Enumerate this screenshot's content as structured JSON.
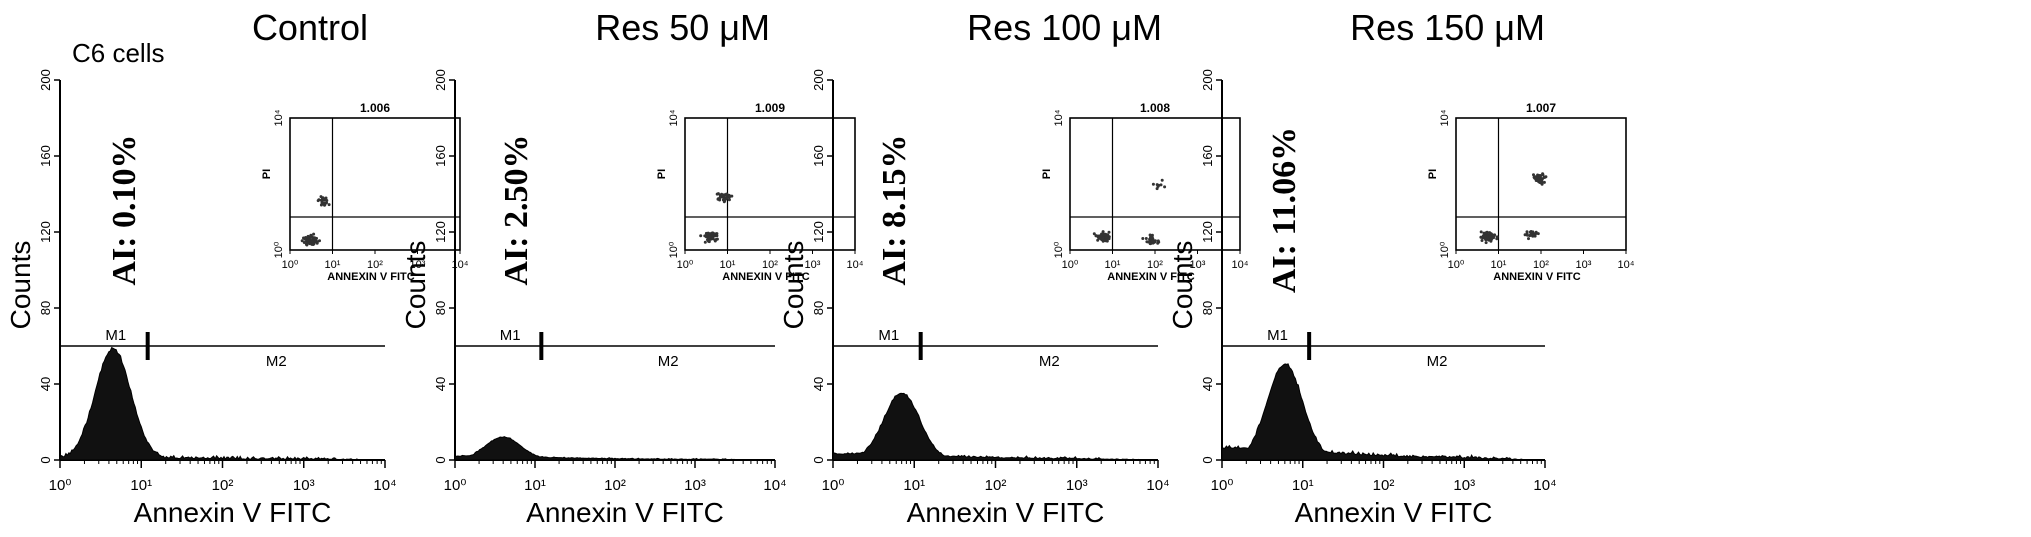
{
  "figure": {
    "corner_label": "C6 cells"
  },
  "chart_data": [
    {
      "type": "histogram",
      "title": "Control",
      "annotation": "AI: 0.10%",
      "xlabel": "Annexin V FITC",
      "ylabel": "Counts",
      "xscale": "log",
      "xlim": [
        1,
        10000
      ],
      "ylim": [
        0,
        200
      ],
      "xticks": [
        1,
        10,
        100,
        1000,
        10000
      ],
      "yticks": [
        0,
        40,
        80,
        120,
        160,
        200
      ],
      "markers": {
        "m1_label": "M1",
        "m2_label": "M2",
        "m1_range": [
          1,
          12
        ],
        "m2_range": [
          12,
          10000
        ],
        "gate_y": 60
      },
      "peak": {
        "center": 4.5,
        "height": 58,
        "baseline_tail": 1.5
      },
      "inset": {
        "type": "scatter",
        "title": "1.006",
        "xlabel": "ANNEXIN V FITC",
        "ylabel": "PI",
        "xscale": "log",
        "yscale": "log",
        "xlim": [
          1,
          10000
        ],
        "ylim": [
          1,
          10000
        ],
        "quadrant": {
          "x": 10,
          "y": 10
        },
        "clusters": [
          {
            "x": 3,
            "y": 2,
            "n": 60
          },
          {
            "x": 6,
            "y": 30,
            "n": 25
          }
        ]
      }
    },
    {
      "type": "histogram",
      "title": "Res 50 μM",
      "annotation": "AI: 2.50%",
      "xlabel": "Annexin V FITC",
      "ylabel": "Counts",
      "xscale": "log",
      "xlim": [
        1,
        10000
      ],
      "ylim": [
        0,
        200
      ],
      "xticks": [
        1,
        10,
        100,
        1000,
        10000
      ],
      "yticks": [
        0,
        40,
        80,
        120,
        160,
        200
      ],
      "markers": {
        "m1_label": "M1",
        "m2_label": "M2",
        "m1_range": [
          1,
          12
        ],
        "m2_range": [
          12,
          10000
        ],
        "gate_y": 60
      },
      "peak": {
        "center": 4,
        "height": 12,
        "baseline_tail": 2
      },
      "inset": {
        "type": "scatter",
        "title": "1.009",
        "xlabel": "ANNEXIN V FITC",
        "ylabel": "PI",
        "xscale": "log",
        "yscale": "log",
        "xlim": [
          1,
          10000
        ],
        "ylim": [
          1,
          10000
        ],
        "quadrant": {
          "x": 10,
          "y": 10
        },
        "clusters": [
          {
            "x": 4,
            "y": 2.5,
            "n": 55
          },
          {
            "x": 8,
            "y": 40,
            "n": 35
          }
        ]
      }
    },
    {
      "type": "histogram",
      "title": "Res 100 μM",
      "annotation": "AI: 8.15%",
      "xlabel": "Annexin V FITC",
      "ylabel": "Counts",
      "xscale": "log",
      "xlim": [
        1,
        10000
      ],
      "ylim": [
        0,
        200
      ],
      "xticks": [
        1,
        10,
        100,
        1000,
        10000
      ],
      "yticks": [
        0,
        40,
        80,
        120,
        160,
        200
      ],
      "markers": {
        "m1_label": "M1",
        "m2_label": "M2",
        "m1_range": [
          1,
          12
        ],
        "m2_range": [
          12,
          10000
        ],
        "gate_y": 60
      },
      "peak": {
        "center": 7,
        "height": 35,
        "baseline_tail": 3
      },
      "inset": {
        "type": "scatter",
        "title": "1.008",
        "xlabel": "ANNEXIN V FITC",
        "ylabel": "PI",
        "xscale": "log",
        "yscale": "log",
        "xlim": [
          1,
          10000
        ],
        "ylim": [
          1,
          10000
        ],
        "quadrant": {
          "x": 10,
          "y": 10
        },
        "clusters": [
          {
            "x": 6,
            "y": 2.5,
            "n": 70
          },
          {
            "x": 80,
            "y": 2,
            "n": 30
          },
          {
            "x": 120,
            "y": 90,
            "n": 8
          }
        ]
      }
    },
    {
      "type": "histogram",
      "title": "Res 150 μM",
      "annotation": "AI: 11.06%",
      "xlabel": "Annexin V FITC",
      "ylabel": "Counts",
      "xscale": "log",
      "xlim": [
        1,
        10000
      ],
      "ylim": [
        0,
        200
      ],
      "xticks": [
        1,
        10,
        100,
        1000,
        10000
      ],
      "yticks": [
        0,
        40,
        80,
        120,
        160,
        200
      ],
      "markers": {
        "m1_label": "M1",
        "m2_label": "M2",
        "m1_range": [
          1,
          12
        ],
        "m2_range": [
          12,
          10000
        ],
        "gate_y": 60
      },
      "peak": {
        "center": 6,
        "height": 50,
        "baseline_tail": 6
      },
      "inset": {
        "type": "scatter",
        "title": "1.007",
        "xlabel": "ANNEXIN V FITC",
        "ylabel": "PI",
        "xscale": "log",
        "yscale": "log",
        "xlim": [
          1,
          10000
        ],
        "ylim": [
          1,
          10000
        ],
        "quadrant": {
          "x": 10,
          "y": 10
        },
        "clusters": [
          {
            "x": 6,
            "y": 2.5,
            "n": 70
          },
          {
            "x": 60,
            "y": 3,
            "n": 30
          },
          {
            "x": 90,
            "y": 150,
            "n": 45
          }
        ]
      }
    }
  ]
}
